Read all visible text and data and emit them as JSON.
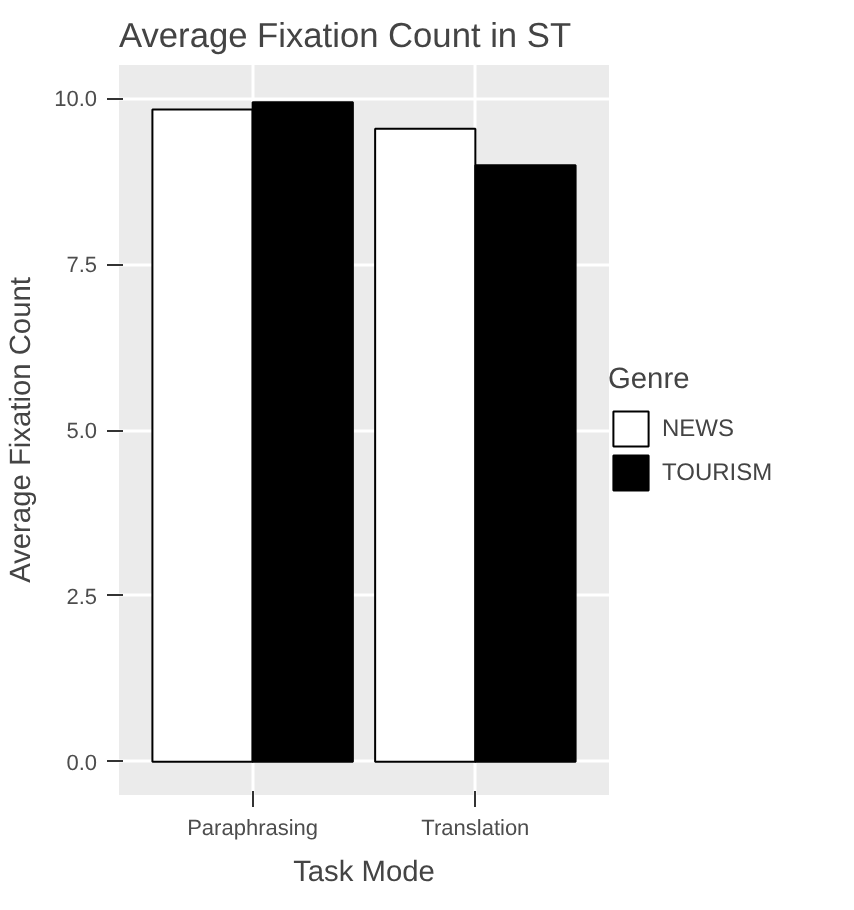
{
  "chart_data": {
    "type": "bar",
    "title": "Average Fixation Count in ST",
    "xlabel": "Task Mode",
    "ylabel": "Average Fixation Count",
    "legend_title": "Genre",
    "categories": [
      "Paraphrasing",
      "Translation"
    ],
    "series": [
      {
        "name": "NEWS",
        "color": "#ffffff",
        "values": [
          9.83,
          9.54
        ]
      },
      {
        "name": "TOURISM",
        "color": "#000000",
        "values": [
          9.94,
          8.99
        ]
      }
    ],
    "ylim": [
      -0.5,
      10.5
    ],
    "yticks": [
      {
        "value": 0,
        "label": "0.0"
      },
      {
        "value": 2.5,
        "label": "2.5"
      },
      {
        "value": 5,
        "label": "5.0"
      },
      {
        "value": 7.5,
        "label": "7.5"
      },
      {
        "value": 10,
        "label": "10.0"
      }
    ],
    "grid": true,
    "legend": "right"
  }
}
